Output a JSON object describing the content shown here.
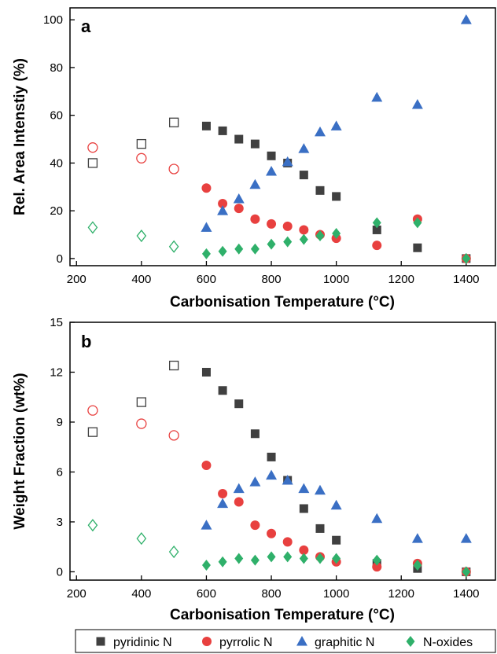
{
  "legend": [
    {
      "name": "pyridinic N",
      "marker": "square",
      "color": "#404040"
    },
    {
      "name": "pyrrolic N",
      "marker": "circle",
      "color": "#e8403f"
    },
    {
      "name": "graphitic N",
      "marker": "triangle",
      "color": "#3a6fc4"
    },
    {
      "name": "N-oxides",
      "marker": "diamond",
      "color": "#2fb06a"
    }
  ],
  "chart_data": [
    {
      "type": "scatter",
      "panel": "a",
      "xlabel": "Carbonisation Temperature (°C)",
      "ylabel": "Rel. Area Intenstiy (%)",
      "xlim": [
        180,
        1490
      ],
      "ylim": [
        -3,
        105
      ],
      "xticks": [
        200,
        400,
        600,
        800,
        1000,
        1200,
        1400
      ],
      "yticks": [
        0,
        20,
        40,
        60,
        80,
        100
      ],
      "series": [
        {
          "name": "pyridinic N",
          "marker": "square",
          "color": "#404040",
          "open_x": [
            250,
            400,
            500
          ],
          "open_y": [
            40,
            48,
            57
          ],
          "x": [
            600,
            650,
            700,
            750,
            800,
            850,
            900,
            950,
            1000,
            1125,
            1250,
            1400
          ],
          "y": [
            55.5,
            53.5,
            50,
            48,
            43,
            40,
            35,
            28.5,
            26,
            12,
            4.5,
            0
          ]
        },
        {
          "name": "pyrrolic N",
          "marker": "circle",
          "color": "#e8403f",
          "open_x": [
            250,
            400,
            500
          ],
          "open_y": [
            46.5,
            42,
            37.5
          ],
          "x": [
            600,
            650,
            700,
            750,
            800,
            850,
            900,
            950,
            1000,
            1125,
            1250,
            1400
          ],
          "y": [
            29.5,
            23,
            21,
            16.5,
            14.5,
            13.5,
            12,
            10,
            8.5,
            5.5,
            16.5,
            0
          ]
        },
        {
          "name": "graphitic N",
          "marker": "triangle",
          "color": "#3a6fc4",
          "open_x": [],
          "open_y": [],
          "x": [
            600,
            650,
            700,
            750,
            800,
            850,
            900,
            950,
            1000,
            1125,
            1250,
            1400
          ],
          "y": [
            13,
            20,
            25,
            31,
            36.5,
            40.5,
            46,
            53,
            55.5,
            67.5,
            64.5,
            100
          ]
        },
        {
          "name": "N-oxides",
          "marker": "diamond",
          "color": "#2fb06a",
          "open_x": [
            250,
            400,
            500
          ],
          "open_y": [
            13,
            9.5,
            5
          ],
          "x": [
            600,
            650,
            700,
            750,
            800,
            850,
            900,
            950,
            1000,
            1125,
            1250,
            1400
          ],
          "y": [
            2,
            3,
            4,
            4,
            6,
            7,
            8,
            9.5,
            10.5,
            15,
            15,
            0
          ]
        }
      ]
    },
    {
      "type": "scatter",
      "panel": "b",
      "xlabel": "Carbonisation Temperature (°C)",
      "ylabel": "Weight Fraction (wt%)",
      "xlim": [
        180,
        1490
      ],
      "ylim": [
        -0.5,
        15
      ],
      "xticks": [
        200,
        400,
        600,
        800,
        1000,
        1200,
        1400
      ],
      "yticks": [
        0,
        3,
        6,
        9,
        12,
        15
      ],
      "series": [
        {
          "name": "pyridinic N",
          "marker": "square",
          "color": "#404040",
          "open_x": [
            250,
            400,
            500
          ],
          "open_y": [
            8.4,
            10.2,
            12.4
          ],
          "x": [
            600,
            650,
            700,
            750,
            800,
            850,
            900,
            950,
            1000,
            1125,
            1250,
            1400
          ],
          "y": [
            12.0,
            10.9,
            10.1,
            8.3,
            6.9,
            5.5,
            3.8,
            2.6,
            1.9,
            0.5,
            0.2,
            0
          ]
        },
        {
          "name": "pyrrolic N",
          "marker": "circle",
          "color": "#e8403f",
          "open_x": [
            250,
            400,
            500
          ],
          "open_y": [
            9.7,
            8.9,
            8.2
          ],
          "x": [
            600,
            650,
            700,
            750,
            800,
            850,
            900,
            950,
            1000,
            1125,
            1250,
            1400
          ],
          "y": [
            6.4,
            4.7,
            4.2,
            2.8,
            2.3,
            1.8,
            1.3,
            0.9,
            0.6,
            0.3,
            0.5,
            0
          ]
        },
        {
          "name": "graphitic N",
          "marker": "triangle",
          "color": "#3a6fc4",
          "open_x": [],
          "open_y": [],
          "x": [
            600,
            650,
            700,
            750,
            800,
            850,
            900,
            950,
            1000,
            1125,
            1250,
            1400
          ],
          "y": [
            2.8,
            4.1,
            5.0,
            5.4,
            5.8,
            5.5,
            5.0,
            4.9,
            4.0,
            3.2,
            2.0,
            2.0
          ]
        },
        {
          "name": "N-oxides",
          "marker": "diamond",
          "color": "#2fb06a",
          "open_x": [
            250,
            400,
            500
          ],
          "open_y": [
            2.8,
            2.0,
            1.2
          ],
          "x": [
            600,
            650,
            700,
            750,
            800,
            850,
            900,
            950,
            1000,
            1125,
            1250,
            1400
          ],
          "y": [
            0.4,
            0.6,
            0.8,
            0.7,
            0.9,
            0.9,
            0.8,
            0.8,
            0.8,
            0.7,
            0.4,
            0
          ]
        }
      ]
    }
  ]
}
